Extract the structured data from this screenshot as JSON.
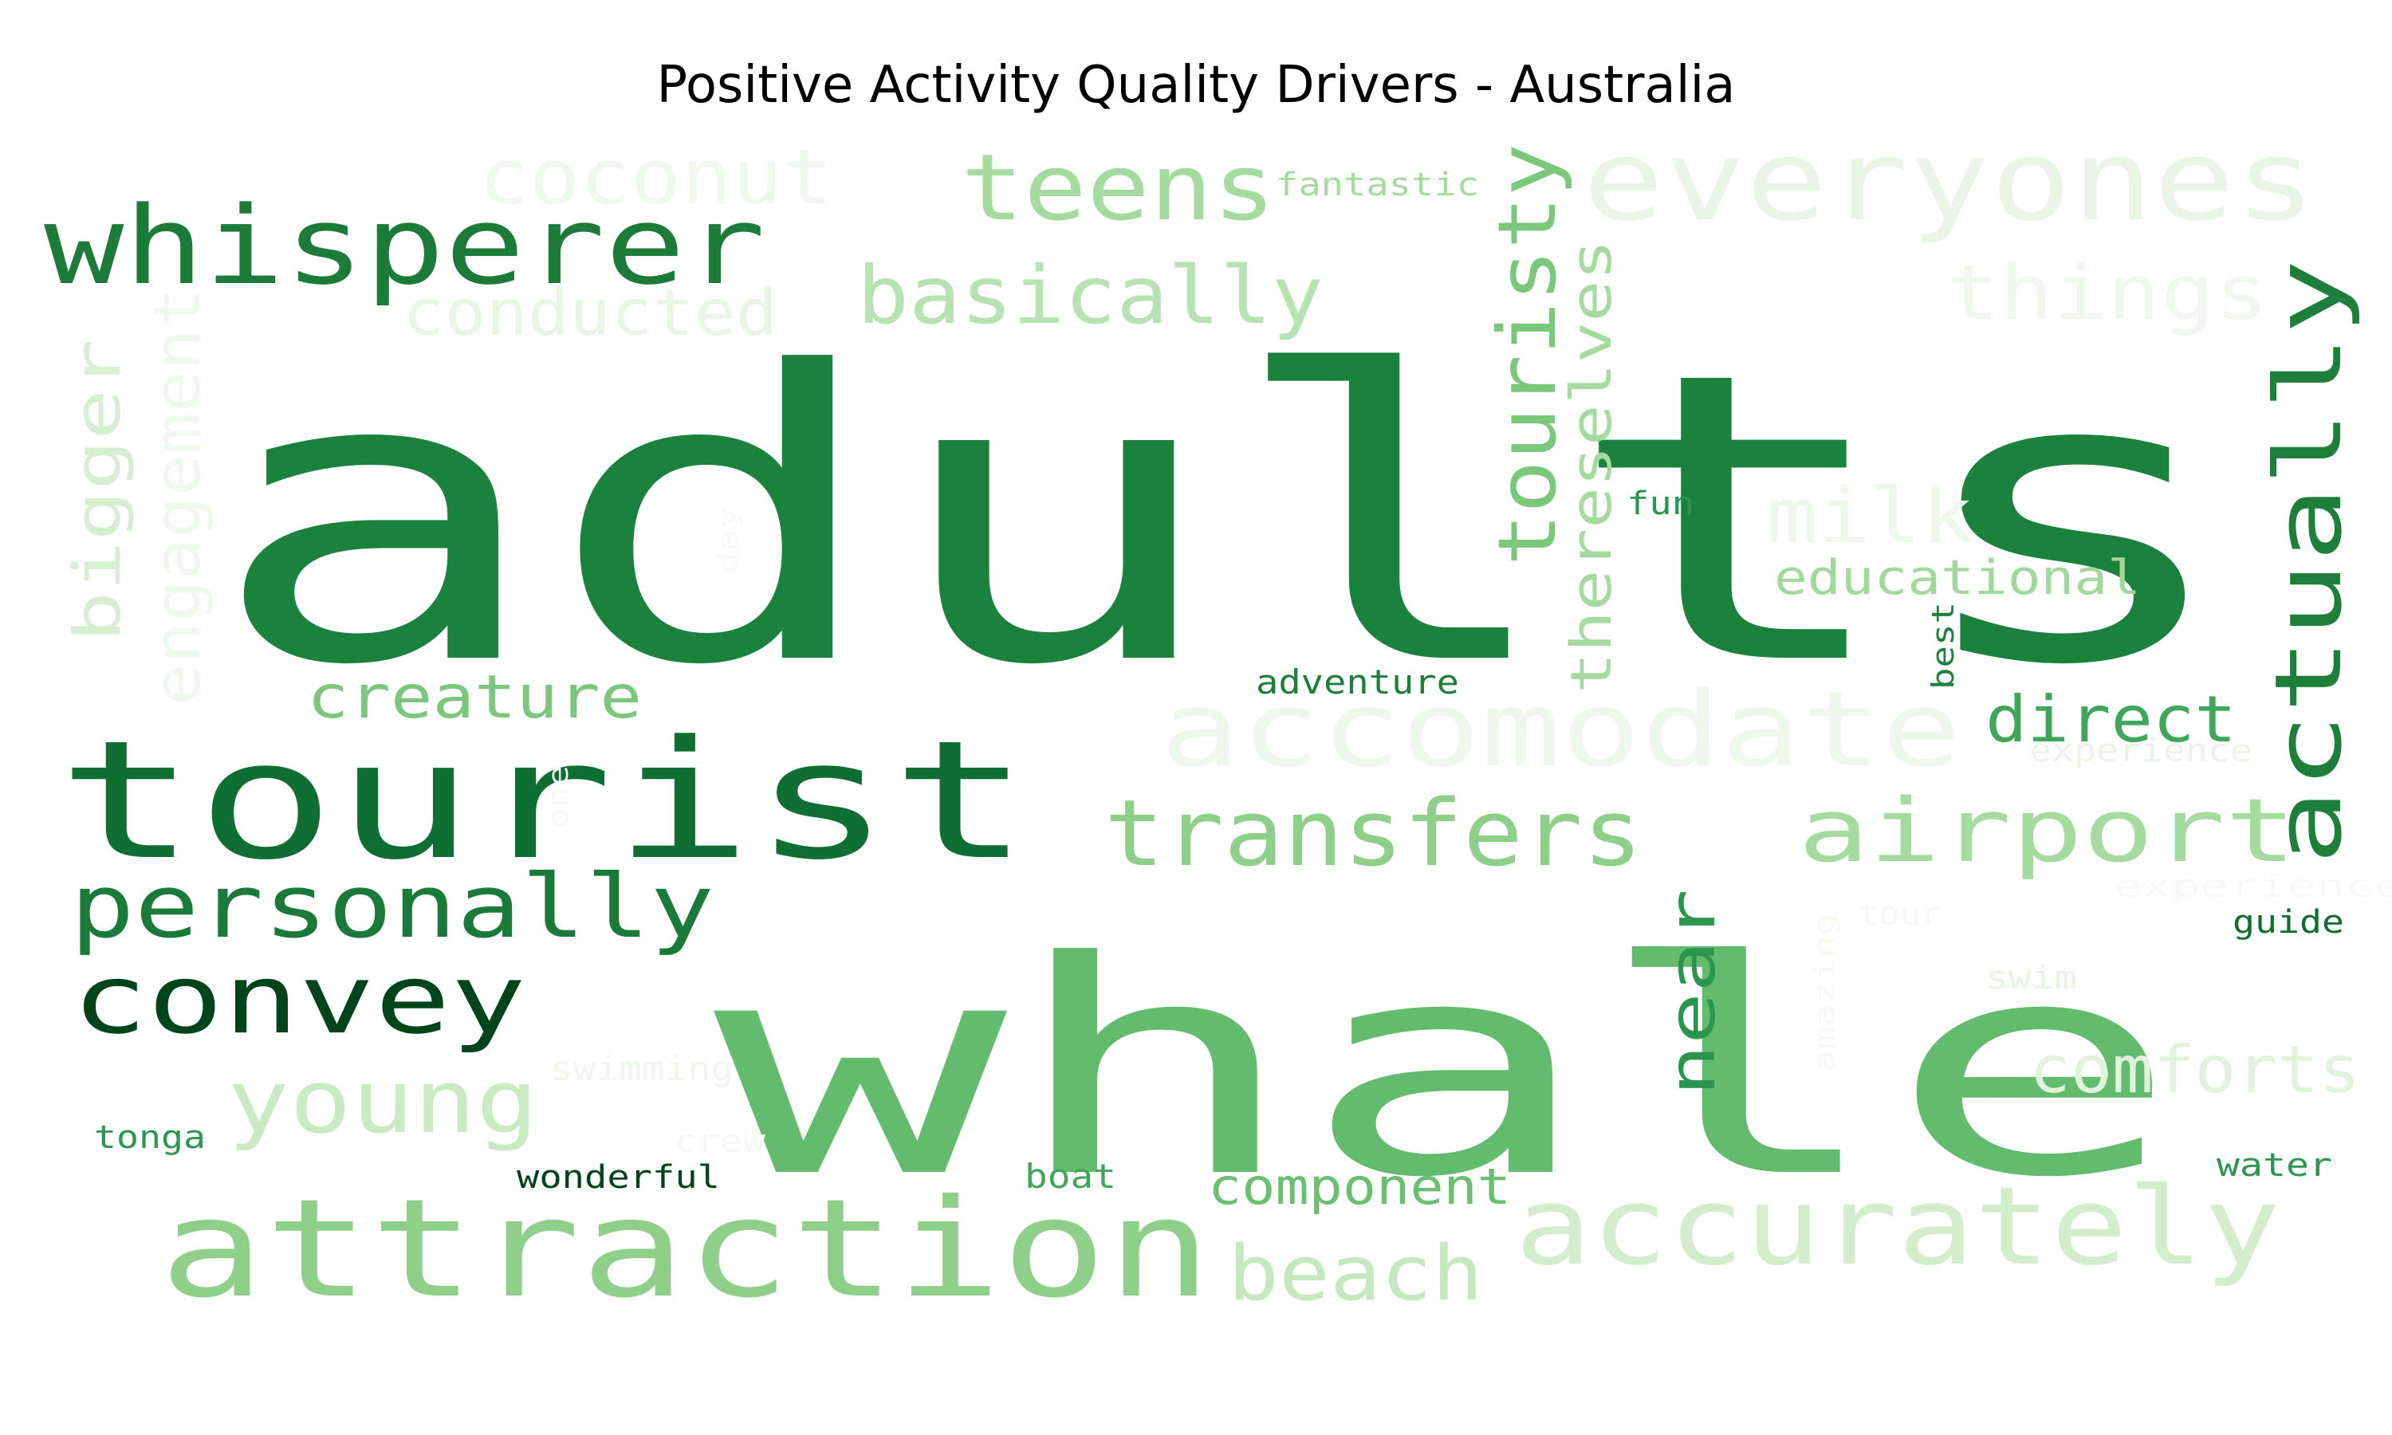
{
  "chart_data": {
    "type": "wordcloud",
    "title": "Positive Activity Quality Drivers - Australia",
    "colormap": "Greens",
    "words": [
      {
        "text": "adults",
        "weight": 1.0,
        "color": "#1b823d"
      },
      {
        "text": "whale",
        "weight": 0.8,
        "color": "#63bb6d"
      },
      {
        "text": "tourist",
        "weight": 0.42,
        "color": "#0f6e31"
      },
      {
        "text": "attraction",
        "weight": 0.31,
        "color": "#8ecf8a"
      },
      {
        "text": "accurately",
        "weight": 0.28,
        "color": "#d3edcd"
      },
      {
        "text": "accomodate",
        "weight": 0.27,
        "color": "#eef8eb"
      },
      {
        "text": "everyones",
        "weight": 0.27,
        "color": "#e9f6e5"
      },
      {
        "text": "actually",
        "weight": 0.24,
        "color": "#1e7f3b"
      },
      {
        "text": "whisperer",
        "weight": 0.22,
        "color": "#1c7b39"
      },
      {
        "text": "airport",
        "weight": 0.2,
        "color": "#a6dba0"
      },
      {
        "text": "transfers",
        "weight": 0.19,
        "color": "#8ecf8a"
      },
      {
        "text": "convey",
        "weight": 0.18,
        "color": "#00441b"
      },
      {
        "text": "personally",
        "weight": 0.17,
        "color": "#1a7a3a"
      },
      {
        "text": "young",
        "weight": 0.17,
        "color": "#c9eac2"
      },
      {
        "text": "teens",
        "weight": 0.17,
        "color": "#a6dba0"
      },
      {
        "text": "coconut",
        "weight": 0.17,
        "color": "#f0f9ed"
      },
      {
        "text": "beach",
        "weight": 0.15,
        "color": "#c6e8bf"
      },
      {
        "text": "touristy",
        "weight": 0.15,
        "color": "#7bc77c"
      },
      {
        "text": "basically",
        "weight": 0.15,
        "color": "#b7e2b1"
      },
      {
        "text": "things",
        "weight": 0.15,
        "color": "#f0f9ed"
      },
      {
        "text": "bigger",
        "weight": 0.14,
        "color": "#d7efd1"
      },
      {
        "text": "comforts",
        "weight": 0.13,
        "color": "#e2f3dd"
      },
      {
        "text": "milk",
        "weight": 0.13,
        "color": "#eef8eb"
      },
      {
        "text": "near",
        "weight": 0.13,
        "color": "#2c954d"
      },
      {
        "text": "direct",
        "weight": 0.12,
        "color": "#3fa65b"
      },
      {
        "text": "engagement",
        "weight": 0.12,
        "color": "#f0f9ed"
      },
      {
        "text": "conducted",
        "weight": 0.12,
        "color": "#e8f6e4"
      },
      {
        "text": "thereselves",
        "weight": 0.11,
        "color": "#a6dba0"
      },
      {
        "text": "creature",
        "weight": 0.1,
        "color": "#7bc77c"
      },
      {
        "text": "component",
        "weight": 0.09,
        "color": "#6bbf70"
      },
      {
        "text": "educational",
        "weight": 0.09,
        "color": "#a0d99b"
      },
      {
        "text": "adventure",
        "weight": 0.06,
        "color": "#1e7f3b"
      },
      {
        "text": "fantastic",
        "weight": 0.055,
        "color": "#a6dba0"
      },
      {
        "text": "wonderful",
        "weight": 0.055,
        "color": "#00441b"
      },
      {
        "text": "boat",
        "weight": 0.055,
        "color": "#3fa65b"
      },
      {
        "text": "swimming",
        "weight": 0.055,
        "color": "#eef8eb"
      },
      {
        "text": "crew",
        "weight": 0.055,
        "color": "#f3faf0"
      },
      {
        "text": "tonga",
        "weight": 0.055,
        "color": "#2e9650"
      },
      {
        "text": "water",
        "weight": 0.055,
        "color": "#2e9650"
      },
      {
        "text": "guide",
        "weight": 0.055,
        "color": "#0f6e31"
      },
      {
        "text": "swim",
        "weight": 0.055,
        "color": "#e6f5e1"
      },
      {
        "text": "tour",
        "weight": 0.055,
        "color": "#f3faf0"
      },
      {
        "text": "experienced",
        "weight": 0.055,
        "color": "#f5fbf3"
      },
      {
        "text": "experience",
        "weight": 0.055,
        "color": "#e9f6e5"
      },
      {
        "text": "fun",
        "weight": 0.055,
        "color": "#2c954d"
      },
      {
        "text": "best",
        "weight": 0.055,
        "color": "#1f8040"
      },
      {
        "text": "day",
        "weight": 0.05,
        "color": "#f5fbf3"
      },
      {
        "text": "one",
        "weight": 0.05,
        "color": "#f3faf0"
      },
      {
        "text": "amazing",
        "weight": 0.05,
        "color": "#f3faf0"
      }
    ]
  }
}
